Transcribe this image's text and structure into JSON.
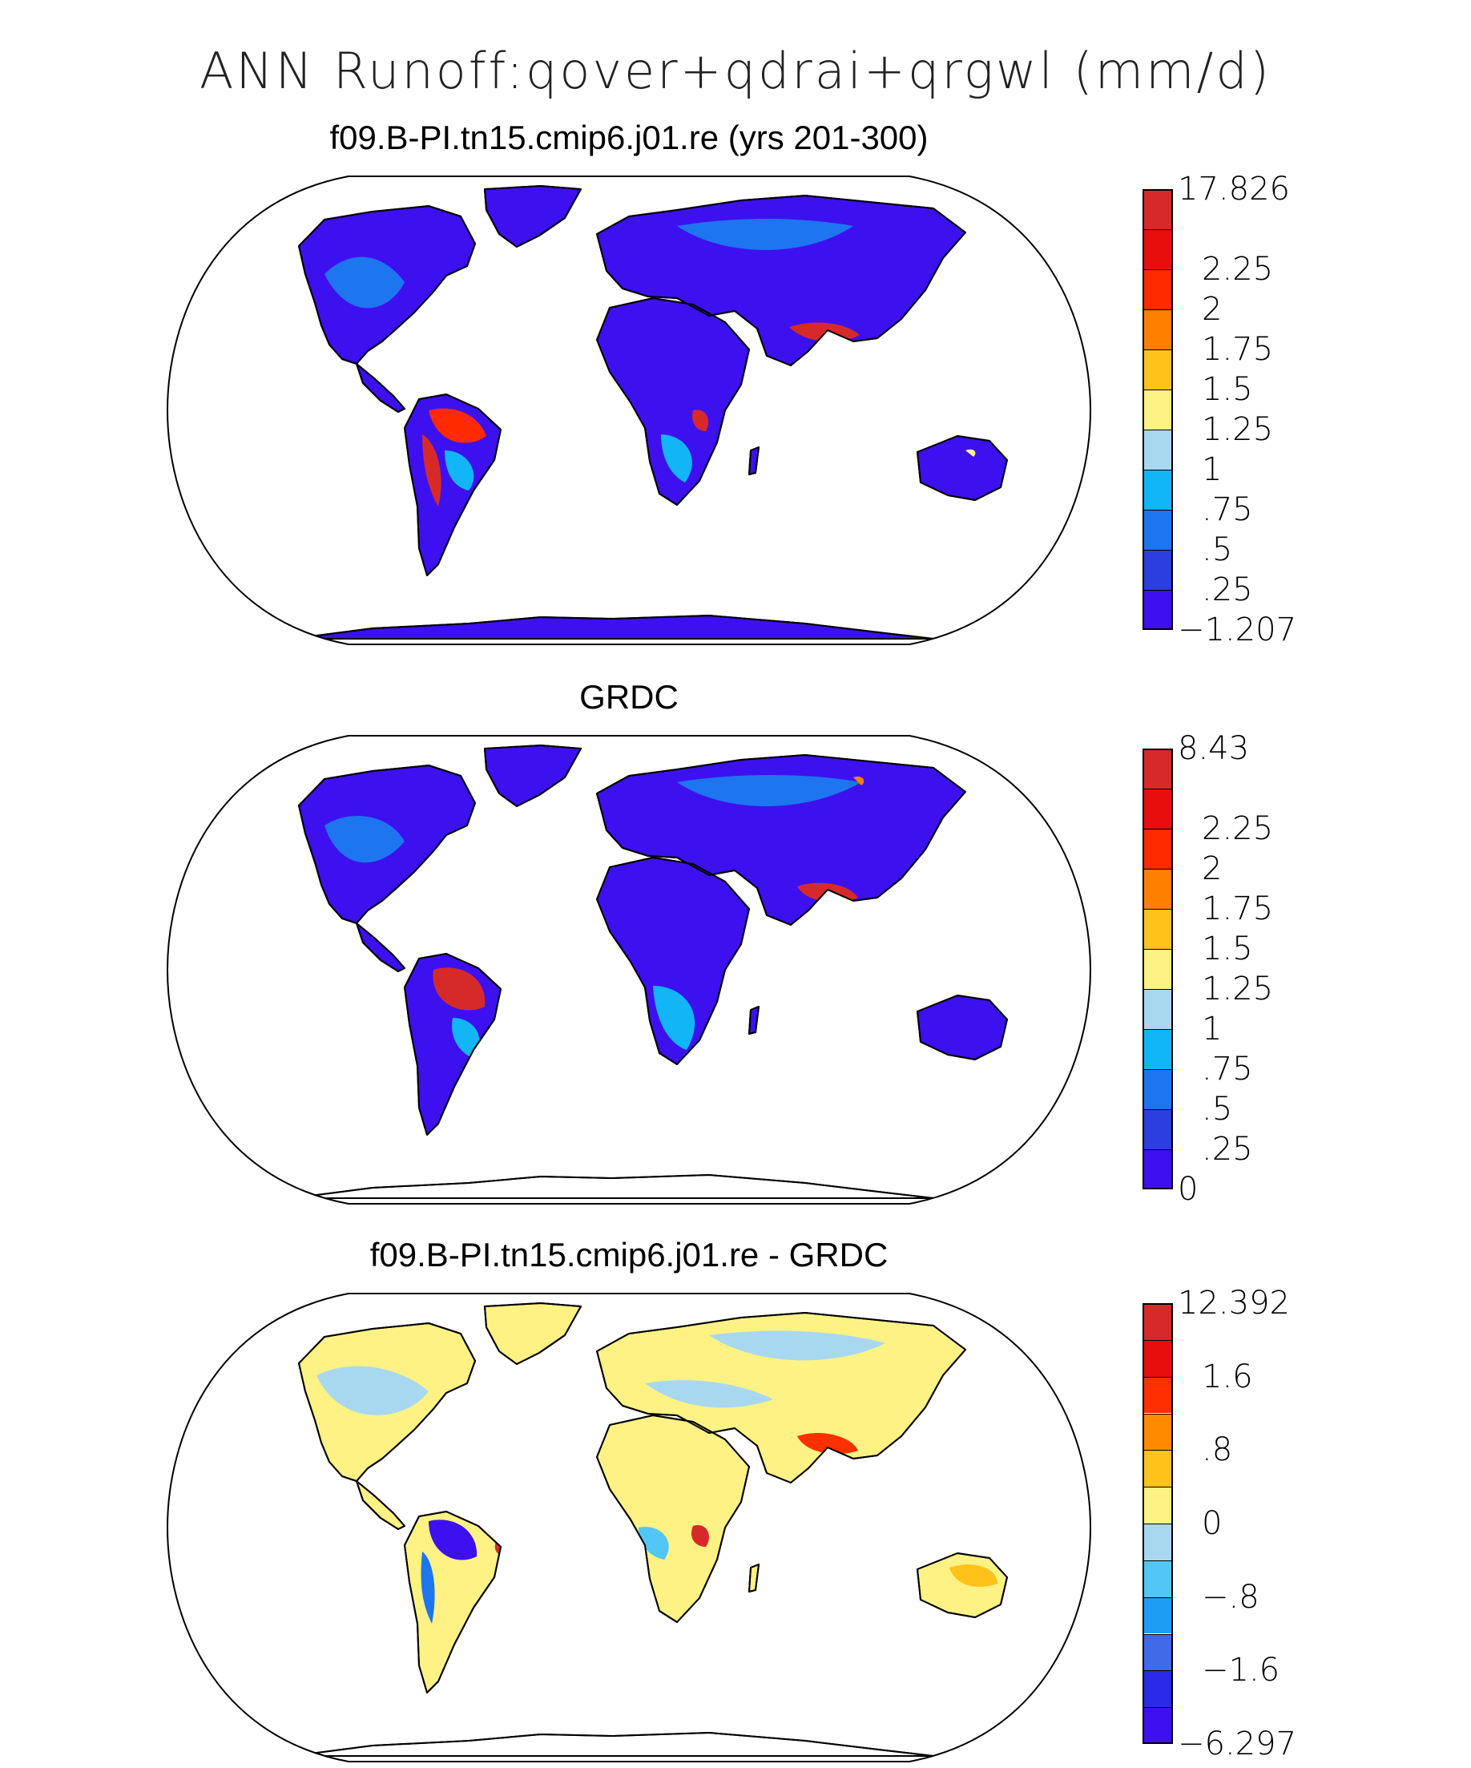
{
  "figure": {
    "title": "ANN Runoff:qover+qdrai+qrgwl (mm/d)"
  },
  "panels": [
    {
      "title": "f09.B-PI.tn15.cmip6.j01.re (yrs 201-300)",
      "colorbar": {
        "colors": [
          "#3d10f0",
          "#2c3ee0",
          "#1e75f0",
          "#12b5f5",
          "#a8d8f0",
          "#fff284",
          "#ffc21a",
          "#ff8000",
          "#ff2a00",
          "#e80e0e",
          "#d62a2a"
        ],
        "labels": [
          "-1.207",
          ".25",
          ".5",
          ".75",
          "1",
          "1.25",
          "1.5",
          "1.75",
          "2",
          "2.25",
          "17.826"
        ]
      }
    },
    {
      "title": "GRDC",
      "colorbar": {
        "colors": [
          "#3d10f0",
          "#2c3ee0",
          "#1e75f0",
          "#12b5f5",
          "#a8d8f0",
          "#fff284",
          "#ffc21a",
          "#ff8000",
          "#ff2a00",
          "#e80e0e",
          "#d62a2a"
        ],
        "labels": [
          "0",
          ".25",
          ".5",
          ".75",
          "1",
          "1.25",
          "1.5",
          "1.75",
          "2",
          "2.25",
          "8.43"
        ]
      }
    },
    {
      "title": "f09.B-PI.tn15.cmip6.j01.re - GRDC",
      "colorbar": {
        "colors": [
          "#3d10f0",
          "#2a2ae8",
          "#3f6ae8",
          "#1e9df5",
          "#52c6f5",
          "#a8d8f0",
          "#fff284",
          "#ffc21a",
          "#ff8a00",
          "#ff3000",
          "#e80e0e",
          "#d62a2a"
        ],
        "labels": [
          "-6.297",
          "-1.6",
          "-.8",
          "0",
          ".8",
          "1.6",
          "12.392"
        ],
        "label_slots": [
          0,
          2,
          4,
          6,
          8,
          10,
          12
        ]
      }
    }
  ]
}
